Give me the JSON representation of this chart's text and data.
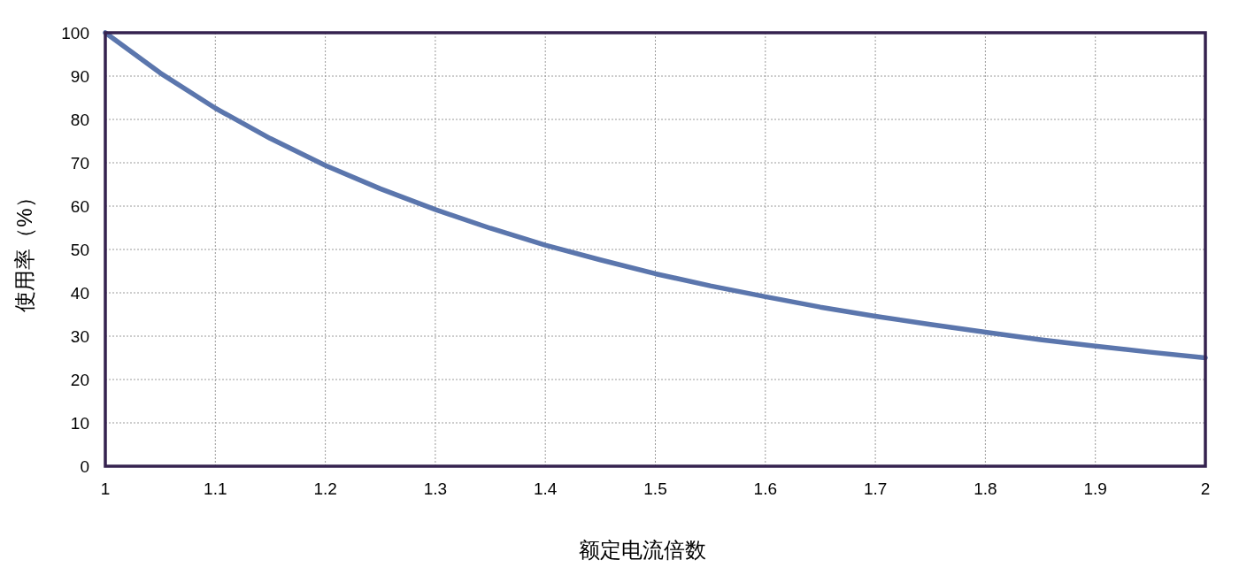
{
  "chart_data": {
    "type": "line",
    "xlabel": "额定电流倍数",
    "ylabel": "使用率（%）",
    "x": [
      1.0,
      1.05,
      1.1,
      1.15,
      1.2,
      1.25,
      1.3,
      1.35,
      1.4,
      1.45,
      1.5,
      1.55,
      1.6,
      1.65,
      1.7,
      1.75,
      1.8,
      1.85,
      1.9,
      1.95,
      2.0
    ],
    "series": [
      {
        "color": "#5b76ad",
        "values": [
          100,
          90.7,
          82.6,
          75.6,
          69.4,
          64.0,
          59.2,
          54.9,
          51.0,
          47.6,
          44.4,
          41.6,
          39.1,
          36.7,
          34.6,
          32.7,
          30.9,
          29.2,
          27.7,
          26.3,
          25.0
        ]
      }
    ],
    "xlim": [
      1,
      2
    ],
    "ylim": [
      0,
      100
    ],
    "xticks": [
      1,
      1.1,
      1.2,
      1.3,
      1.4,
      1.5,
      1.6,
      1.7,
      1.8,
      1.9,
      2
    ],
    "yticks": [
      0,
      10,
      20,
      30,
      40,
      50,
      60,
      70,
      80,
      90,
      100
    ],
    "grid": true,
    "line_style": "solid"
  }
}
